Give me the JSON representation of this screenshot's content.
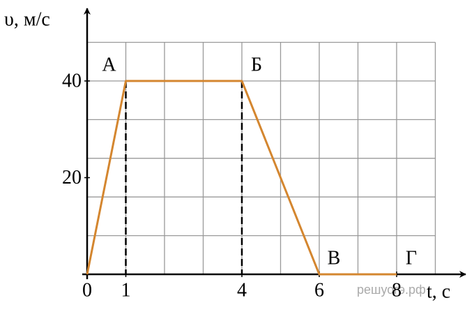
{
  "chart_data": {
    "type": "line",
    "y_label": "υ, м/с",
    "x_label": "t, с",
    "x": [
      0,
      1,
      4,
      6,
      8
    ],
    "series": [
      {
        "color": "#d4862f",
        "values": [
          0,
          40,
          40,
          0,
          0
        ],
        "point_labels": [
          "",
          "А",
          "Б",
          "В",
          "Г"
        ]
      }
    ],
    "xlim": [
      0,
      9
    ],
    "ylim": [
      0,
      48
    ],
    "xticks": [
      0,
      1,
      4,
      6,
      8
    ],
    "yticks": [
      20,
      40
    ],
    "xgrid": [
      0,
      1,
      2,
      3,
      4,
      5,
      6,
      7,
      8,
      9
    ],
    "ygrid": [
      0,
      8,
      16,
      24,
      32,
      40,
      48
    ],
    "grid": true,
    "dashed_drops": [
      1,
      2
    ],
    "watermark": "решуогэ.рф"
  }
}
